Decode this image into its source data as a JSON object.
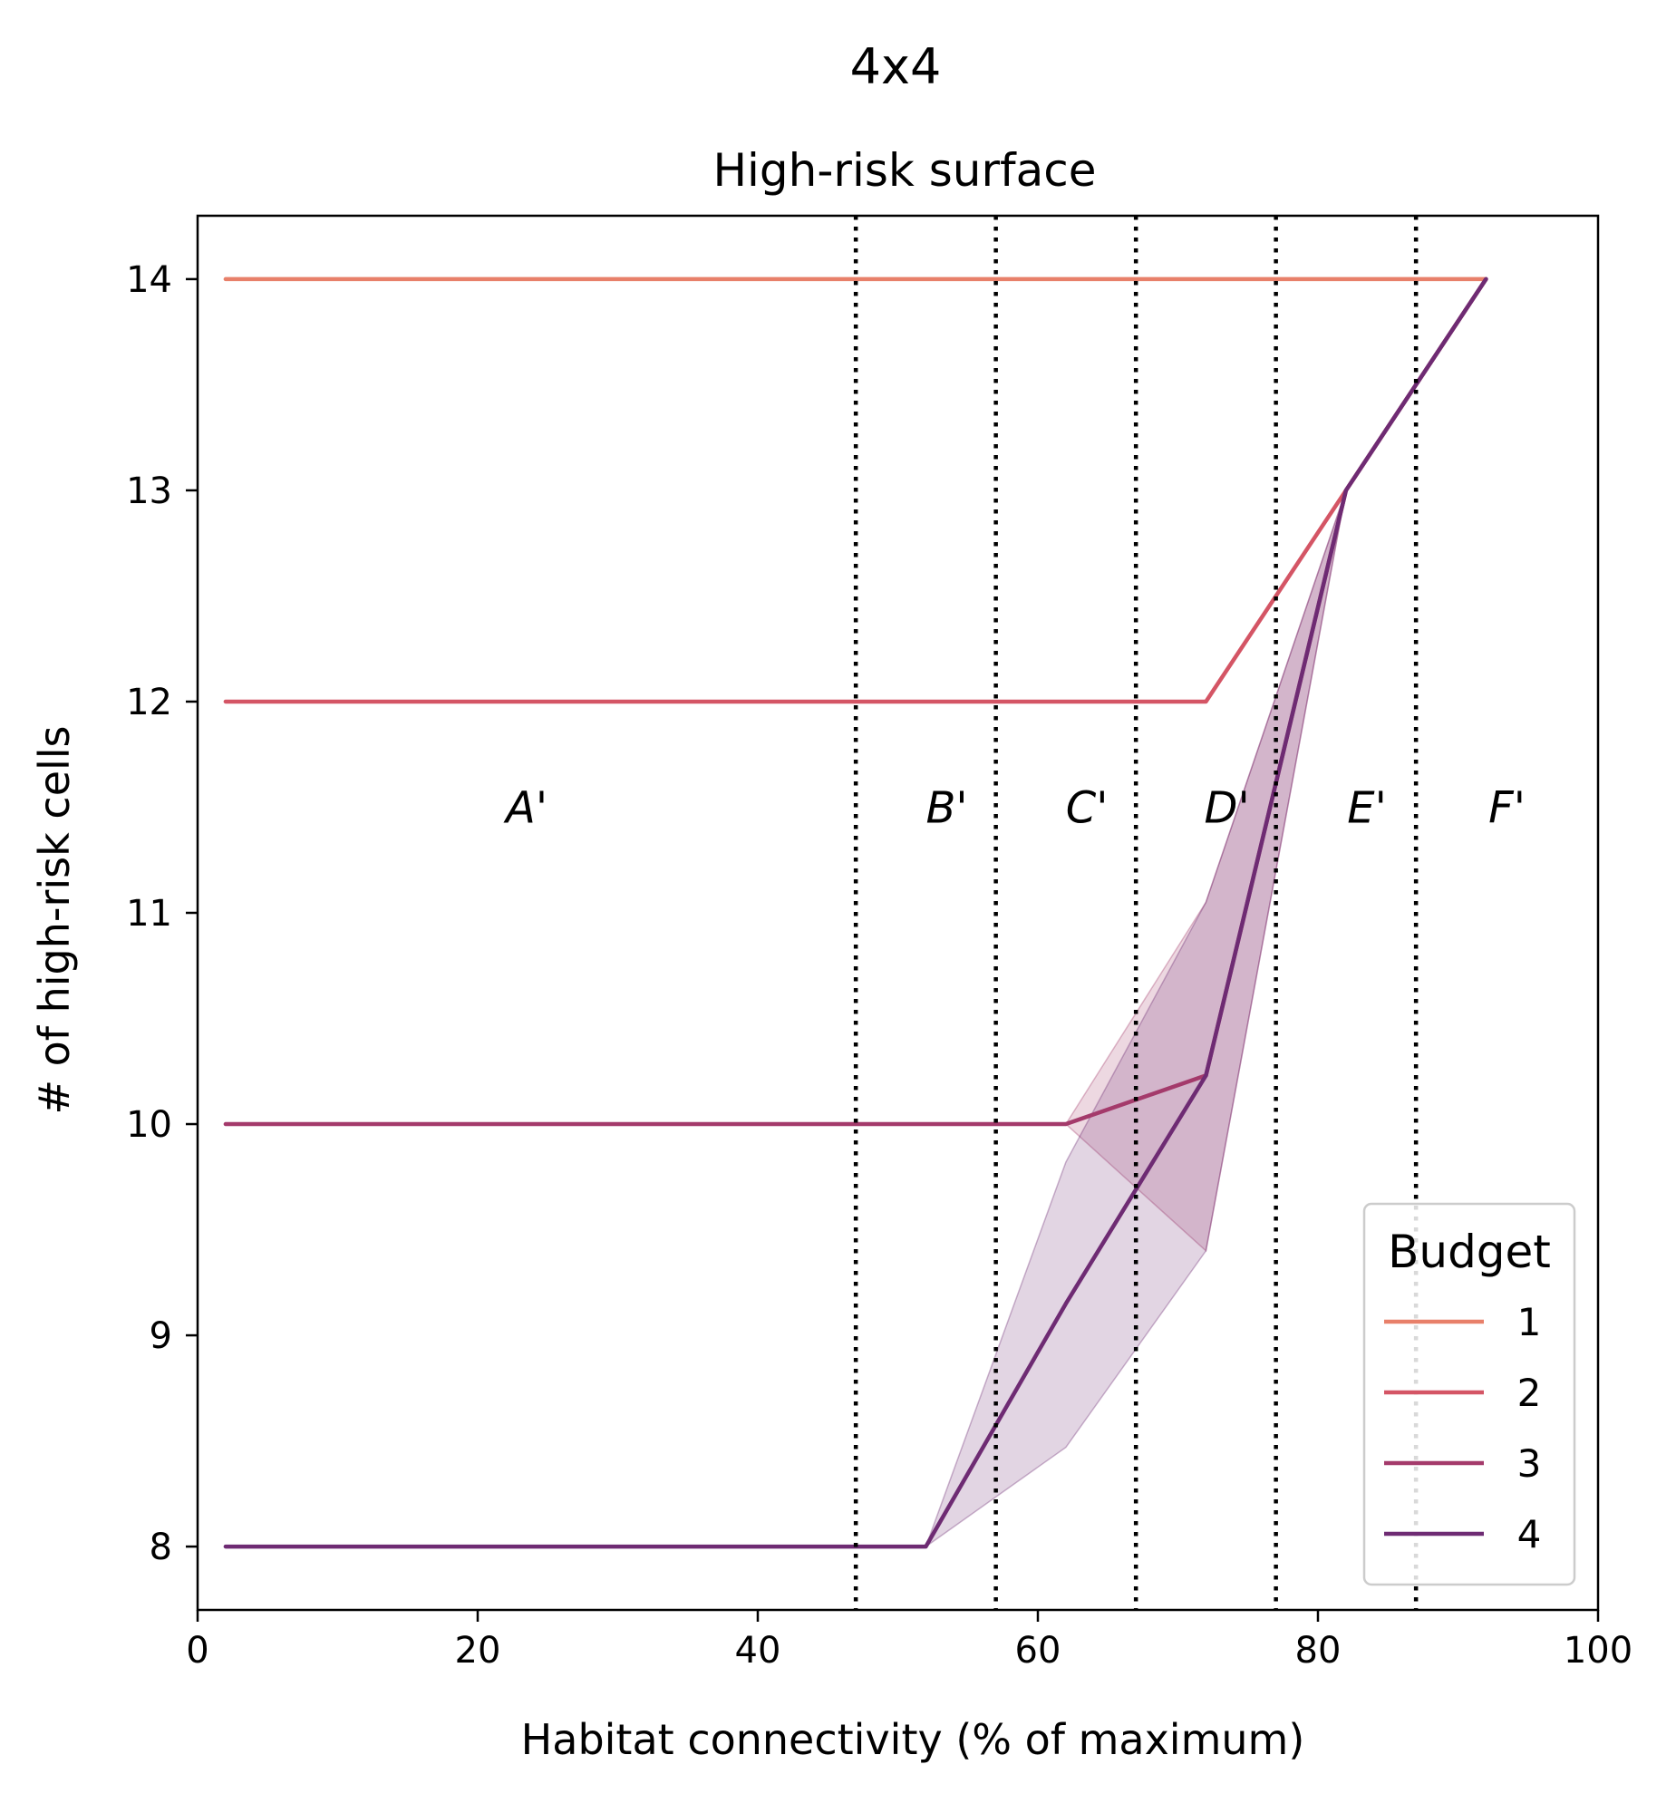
{
  "suptitle": "4x4",
  "chart_data": {
    "type": "line",
    "title": "High-risk surface",
    "xlabel": "Habitat connectivity (% of maximum)",
    "ylabel": "# of high-risk cells",
    "xlim": [
      0,
      100
    ],
    "ylim": [
      7.7,
      14.3
    ],
    "x_ticks": [
      0,
      20,
      40,
      60,
      80,
      100
    ],
    "y_ticks": [
      8,
      9,
      10,
      11,
      12,
      13,
      14
    ],
    "grid": false,
    "vertical_lines": [
      47,
      57,
      67,
      77,
      87
    ],
    "vertical_line_style": "dotted",
    "regions": [
      {
        "label": "A'",
        "x": 23.5,
        "y": 11.5
      },
      {
        "label": "B'",
        "x": 53.5,
        "y": 11.5
      },
      {
        "label": "C'",
        "x": 63.5,
        "y": 11.5
      },
      {
        "label": "D'",
        "x": 73.5,
        "y": 11.5
      },
      {
        "label": "E'",
        "x": 83.5,
        "y": 11.5
      },
      {
        "label": "F'",
        "x": 93.5,
        "y": 11.5
      }
    ],
    "legend": {
      "title": "Budget",
      "position": "lower right"
    },
    "series": [
      {
        "name": "1",
        "color": "#e8806a",
        "x": [
          2,
          92
        ],
        "y": [
          14,
          14
        ]
      },
      {
        "name": "2",
        "color": "#d45565",
        "x": [
          2,
          72,
          82,
          92
        ],
        "y": [
          12,
          12,
          13,
          14
        ]
      },
      {
        "name": "3",
        "color": "#a43a6b",
        "x": [
          2,
          62,
          72,
          82,
          92
        ],
        "y": [
          10,
          10,
          10.23,
          13,
          14
        ],
        "band_low": [
          10,
          10,
          9.4,
          13,
          14
        ],
        "band_high": [
          10,
          10,
          11.05,
          13,
          14
        ]
      },
      {
        "name": "4",
        "color": "#6e2b73",
        "x": [
          2,
          52,
          62,
          72,
          82,
          92
        ],
        "y": [
          8,
          8,
          9.15,
          10.23,
          13,
          14
        ],
        "band_low": [
          8,
          8,
          8.47,
          9.4,
          13,
          14
        ],
        "band_high": [
          8,
          8,
          9.82,
          11.05,
          13,
          14
        ]
      }
    ]
  }
}
